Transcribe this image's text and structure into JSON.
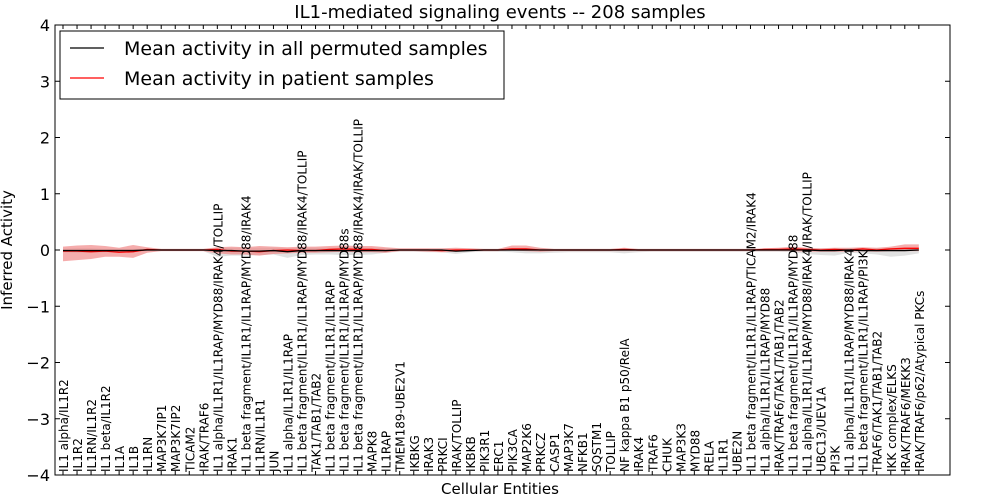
{
  "chart_data": {
    "type": "line",
    "title": "IL1-mediated signaling events -- 208 samples",
    "xlabel": "Cellular Entities",
    "ylabel": "Inferred Activity",
    "ylim": [
      -4,
      4
    ],
    "yticks": [
      -4,
      -3,
      -2,
      -1,
      0,
      1,
      2,
      3,
      4
    ],
    "ytick_labels": [
      "−4",
      "−3",
      "−2",
      "−1",
      "0",
      "1",
      "2",
      "3",
      "4"
    ],
    "grid": false,
    "legend_position": "top-left",
    "categories": [
      "IL1 alpha/IL1R2",
      "IL1R2",
      "IL1RN/IL1R2",
      "IL1 beta/IL1R2",
      "IL1A",
      "IL1B",
      "IL1RN",
      "MAP3K7IP1",
      "MAP3K7IP2",
      "TICAM2",
      "IRAK/TRAF6",
      "IL1 alpha/IL1R1/IL1RAP/MYD88/IRAK4/TOLLIP",
      "IRAK1",
      "IL1 beta fragment/IL1R1/IL1RAP/MYD88/IRAK4",
      "IL1RN/IL1R1",
      "JUN",
      "IL1 alpha/IL1R1/IL1RAP",
      "IL1 beta fragment/IL1R1/IL1RAP/MYD88/IRAK4/TOLLIP",
      "TAK1/TAB1/TAB2",
      "IL1 beta fragment/IL1R1/IL1RAP",
      "IL1 beta fragment/IL1R1/IL1RAP/MYD88s",
      "IL1 beta fragment/IL1R1/IL1RAP/MYD88/IRAK4/IRAK/TOLLIP",
      "MAPK8",
      "IL1RAP",
      "TMEM189-UBE2V1",
      "IKBKG",
      "IRAK3",
      "PRKCI",
      "IRAK/TOLLIP",
      "IKBKB",
      "PIK3R1",
      "ERC1",
      "PIK3CA",
      "MAP2K6",
      "PRKCZ",
      "CASP1",
      "MAP3K7",
      "NFKB1",
      "SQSTM1",
      "TOLLIP",
      "NF kappa B1 p50/RelA",
      "IRAK4",
      "TRAF6",
      "CHUK",
      "MAP3K3",
      "MYD88",
      "RELA",
      "IL1R1",
      "UBE2N",
      "IL1 beta fragment/IL1R1/IL1RAP/TICAM2/IRAK4",
      "IL1 alpha/IL1R1/IL1RAP/MYD88",
      "IRAK/TRAF6/TAK1/TAB1/TAB2",
      "IL1 beta fragment/IL1R1/IL1RAP/MYD88",
      "IL1 alpha/IL1R1/IL1RAP/MYD88/IRAK4/IRAK/TOLLIP",
      "UBC13/UEV1A",
      "PI3K",
      "IL1 alpha/IL1R1/IL1RAP/MYD88/IRAK4",
      "IL1 beta fragment/IL1R1/IL1RAP/PI3K",
      "TRAF6/TAK1/TAB1/TAB2",
      "IKK complex/ELKS",
      "IRAK/TRAF6/MEKK3",
      "IRAK/TRAF6/p62/Atypical PKCs"
    ],
    "series": [
      {
        "name": "Mean activity in all permuted samples",
        "color": "#000000",
        "values": [
          -0.01,
          -0.01,
          -0.01,
          -0.01,
          -0.01,
          -0.01,
          0,
          0,
          0,
          0,
          0,
          -0.01,
          -0.01,
          -0.02,
          -0.02,
          -0.01,
          -0.03,
          -0.01,
          -0.01,
          -0.01,
          -0.01,
          -0.01,
          -0.01,
          -0.01,
          0,
          0,
          0,
          0,
          -0.02,
          -0.01,
          0,
          0,
          0,
          0,
          0,
          0,
          0,
          0,
          0,
          0,
          0,
          0,
          0,
          0,
          0,
          0,
          0,
          0,
          0,
          0,
          0,
          0,
          0,
          0,
          -0.01,
          -0.01,
          0,
          -0.01,
          -0.01,
          -0.01,
          -0.01,
          0
        ],
        "band_lower": [
          -0.04,
          -0.05,
          -0.05,
          -0.04,
          -0.04,
          -0.03,
          -0.02,
          -0.02,
          -0.02,
          -0.02,
          -0.02,
          -0.12,
          -0.1,
          -0.1,
          -0.09,
          -0.08,
          -0.14,
          -0.09,
          -0.08,
          -0.08,
          -0.09,
          -0.09,
          -0.08,
          -0.05,
          -0.03,
          -0.03,
          -0.04,
          -0.04,
          -0.07,
          -0.04,
          -0.03,
          -0.03,
          -0.04,
          -0.06,
          -0.06,
          -0.05,
          -0.04,
          -0.04,
          -0.04,
          -0.04,
          -0.06,
          -0.04,
          -0.03,
          -0.03,
          -0.03,
          -0.03,
          -0.03,
          -0.03,
          -0.03,
          -0.03,
          -0.03,
          -0.03,
          -0.04,
          -0.07,
          -0.09,
          -0.1,
          -0.05,
          -0.06,
          -0.08,
          -0.12,
          -0.1,
          -0.06
        ],
        "band_upper": [
          0.02,
          0.03,
          0.03,
          0.02,
          0.02,
          0.02,
          0.02,
          0.02,
          0.02,
          0.02,
          0.02,
          0.04,
          0.04,
          0.04,
          0.04,
          0.04,
          0.03,
          0.04,
          0.04,
          0.04,
          0.04,
          0.04,
          0.04,
          0.03,
          0.02,
          0.02,
          0.02,
          0.02,
          0.02,
          0.02,
          0.02,
          0.02,
          0.02,
          0.03,
          0.03,
          0.02,
          0.02,
          0.02,
          0.02,
          0.02,
          0.02,
          0.02,
          0.02,
          0.02,
          0.02,
          0.02,
          0.02,
          0.02,
          0.02,
          0.02,
          0.02,
          0.02,
          0.02,
          0.02,
          0.02,
          0.03,
          0.03,
          0.03,
          0.03,
          0.03,
          0.04,
          0.03
        ]
      },
      {
        "name": "Mean activity in patient samples",
        "color": "#ff0000",
        "band_color": "#f08080",
        "values": [
          -0.02,
          -0.02,
          -0.03,
          -0.02,
          -0.04,
          -0.03,
          0.01,
          0,
          0,
          0,
          0,
          0.01,
          -0.02,
          -0.02,
          -0.03,
          -0.01,
          0,
          -0.01,
          -0.01,
          0.01,
          0.02,
          0.01,
          0.01,
          -0.01,
          0,
          0,
          0,
          -0.01,
          0,
          0,
          0,
          0,
          0.02,
          0.02,
          0,
          0,
          0,
          0,
          0,
          0,
          0.01,
          0,
          0,
          0,
          0,
          0,
          0,
          0,
          0,
          0,
          0.01,
          0.01,
          0.02,
          0.01,
          0,
          0.01,
          0,
          0.02,
          0,
          0.02,
          0.03,
          0.03
        ],
        "band_lower": [
          -0.2,
          -0.18,
          -0.16,
          -0.12,
          -0.12,
          -0.14,
          -0.05,
          -0.02,
          -0.02,
          -0.02,
          -0.02,
          -0.06,
          -0.08,
          -0.08,
          -0.1,
          -0.07,
          -0.06,
          -0.05,
          -0.05,
          -0.04,
          -0.03,
          -0.04,
          -0.04,
          -0.05,
          -0.02,
          -0.02,
          -0.03,
          -0.04,
          -0.03,
          -0.02,
          -0.02,
          -0.02,
          -0.01,
          -0.02,
          -0.03,
          -0.02,
          -0.02,
          -0.02,
          -0.02,
          -0.02,
          -0.02,
          -0.02,
          -0.02,
          -0.02,
          -0.02,
          -0.02,
          -0.02,
          -0.02,
          -0.02,
          -0.02,
          -0.02,
          -0.02,
          -0.02,
          -0.03,
          -0.03,
          -0.03,
          -0.03,
          -0.02,
          -0.03,
          -0.02,
          -0.02,
          -0.02
        ],
        "band_upper": [
          0.06,
          0.08,
          0.09,
          0.07,
          0.04,
          0.09,
          0.05,
          0.02,
          0.02,
          0.02,
          0.02,
          0.05,
          0.06,
          0.05,
          0.07,
          0.06,
          0.05,
          0.06,
          0.06,
          0.07,
          0.08,
          0.07,
          0.07,
          0.05,
          0.03,
          0.03,
          0.03,
          0.03,
          0.04,
          0.03,
          0.02,
          0.02,
          0.08,
          0.08,
          0.04,
          0.02,
          0.02,
          0.02,
          0.02,
          0.02,
          0.04,
          0.02,
          0.02,
          0.02,
          0.02,
          0.02,
          0.02,
          0.02,
          0.02,
          0.02,
          0.03,
          0.04,
          0.06,
          0.04,
          0.03,
          0.04,
          0.04,
          0.05,
          0.04,
          0.06,
          0.1,
          0.1
        ]
      }
    ]
  }
}
